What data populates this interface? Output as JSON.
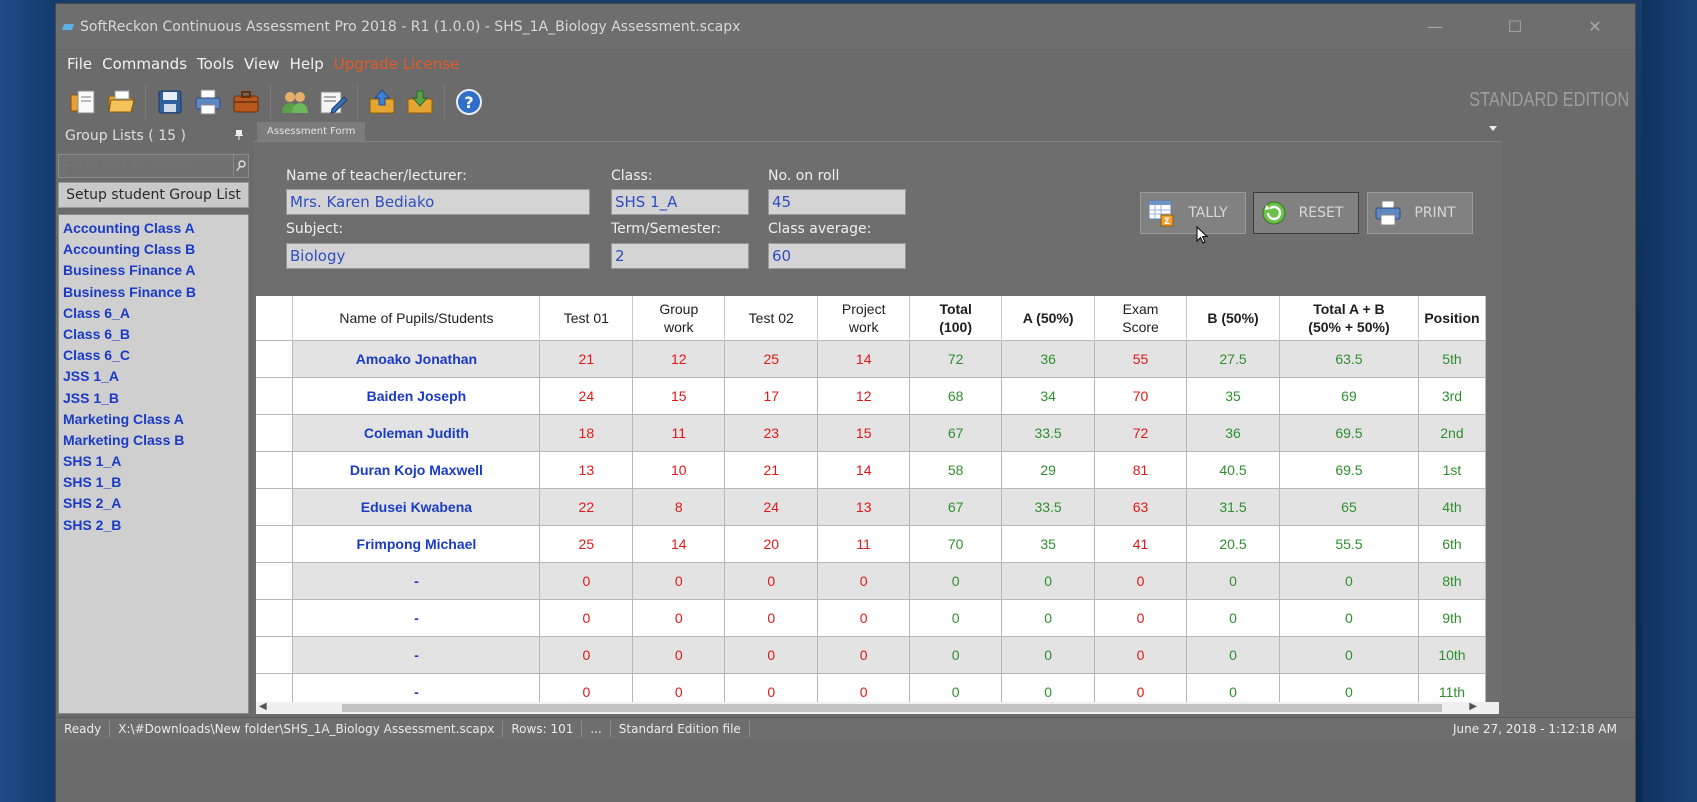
{
  "window": {
    "title": "SoftReckon Continuous Assessment Pro 2018 - R1 (1.0.0) - SHS_1A_Biology Assessment.scapx",
    "minimize": "—",
    "maximize": "☐",
    "close": "✕"
  },
  "menu": [
    "File",
    "Commands",
    "Tools",
    "View",
    "Help",
    "Upgrade License"
  ],
  "toolbar": {
    "edition": "STANDARD EDITION",
    "buttons": [
      "new-icon",
      "open-folder-icon",
      "save-icon",
      "print-icon",
      "briefcase-icon",
      "students-icon",
      "edit-icon",
      "upload-icon",
      "download-icon",
      "help-icon"
    ]
  },
  "sidebar": {
    "header": "Group Lists ( 15 )",
    "search_placeholder": "Enter text to search...",
    "setup_button": "Setup student Group List",
    "groups": [
      "Accounting Class A",
      "Accounting Class B",
      "Business Finance A",
      "Business Finance B",
      "Class 6_A",
      "Class 6_B",
      "Class 6_C",
      "JSS 1_A",
      "JSS 1_B",
      "Marketing Class A",
      "Marketing Class B",
      "SHS 1_A",
      "SHS 1_B",
      "SHS 2_A",
      "SHS 2_B"
    ]
  },
  "document": {
    "tab": "Assessment Form",
    "labels": {
      "teacher": "Name of teacher/lecturer:",
      "class": "Class:",
      "roll": "No. on roll",
      "subject": "Subject:",
      "term": "Term/Semester:",
      "average": "Class average:"
    },
    "values": {
      "teacher": "Mrs. Karen Bediako",
      "class": "SHS 1_A",
      "roll": "45",
      "subject": "Biology",
      "term": "2",
      "average": "60"
    },
    "buttons": {
      "tally": "TALLY",
      "reset": "RESET",
      "print": "PRINT"
    }
  },
  "grid": {
    "columns": [
      "Name of Pupils/Students",
      "Test 01",
      "Group\nwork",
      "Test 02",
      "Project\nwork",
      "Total\n(100)",
      "A (50%)",
      "Exam\nScore",
      "B (50%)",
      "Total A + B\n(50% + 50%)",
      "Position"
    ],
    "rows": [
      [
        "Amoako Jonathan",
        "21",
        "12",
        "25",
        "14",
        "72",
        "36",
        "55",
        "27.5",
        "63.5",
        "5th"
      ],
      [
        "Baiden Joseph",
        "24",
        "15",
        "17",
        "12",
        "68",
        "34",
        "70",
        "35",
        "69",
        "3rd"
      ],
      [
        "Coleman Judith",
        "18",
        "11",
        "23",
        "15",
        "67",
        "33.5",
        "72",
        "36",
        "69.5",
        "2nd"
      ],
      [
        "Duran Kojo Maxwell",
        "13",
        "10",
        "21",
        "14",
        "58",
        "29",
        "81",
        "40.5",
        "69.5",
        "1st"
      ],
      [
        "Edusei Kwabena",
        "22",
        "8",
        "24",
        "13",
        "67",
        "33.5",
        "63",
        "31.5",
        "65",
        "4th"
      ],
      [
        "Frimpong Michael",
        "25",
        "14",
        "20",
        "11",
        "70",
        "35",
        "41",
        "20.5",
        "55.5",
        "6th"
      ],
      [
        "-",
        "0",
        "0",
        "0",
        "0",
        "0",
        "0",
        "0",
        "0",
        "0",
        "8th"
      ],
      [
        "-",
        "0",
        "0",
        "0",
        "0",
        "0",
        "0",
        "0",
        "0",
        "0",
        "9th"
      ],
      [
        "-",
        "0",
        "0",
        "0",
        "0",
        "0",
        "0",
        "0",
        "0",
        "0",
        "10th"
      ],
      [
        "-",
        "0",
        "0",
        "0",
        "0",
        "0",
        "0",
        "0",
        "0",
        "0",
        "11th"
      ]
    ]
  },
  "statusbar": {
    "state": "Ready",
    "path": "X:\\#Downloads\\New folder\\SHS_1A_Biology Assessment.scapx",
    "rows": "Rows: 101",
    "more": "...",
    "edition": "Standard Edition file",
    "datetime": "June 27, 2018 - 1:12:18 AM"
  },
  "colors": {
    "name_blue": "#1a3bc5",
    "score_red": "#e01818",
    "computed_green": "#2f8f2f",
    "upgrade_orange": "#e35a2a"
  }
}
